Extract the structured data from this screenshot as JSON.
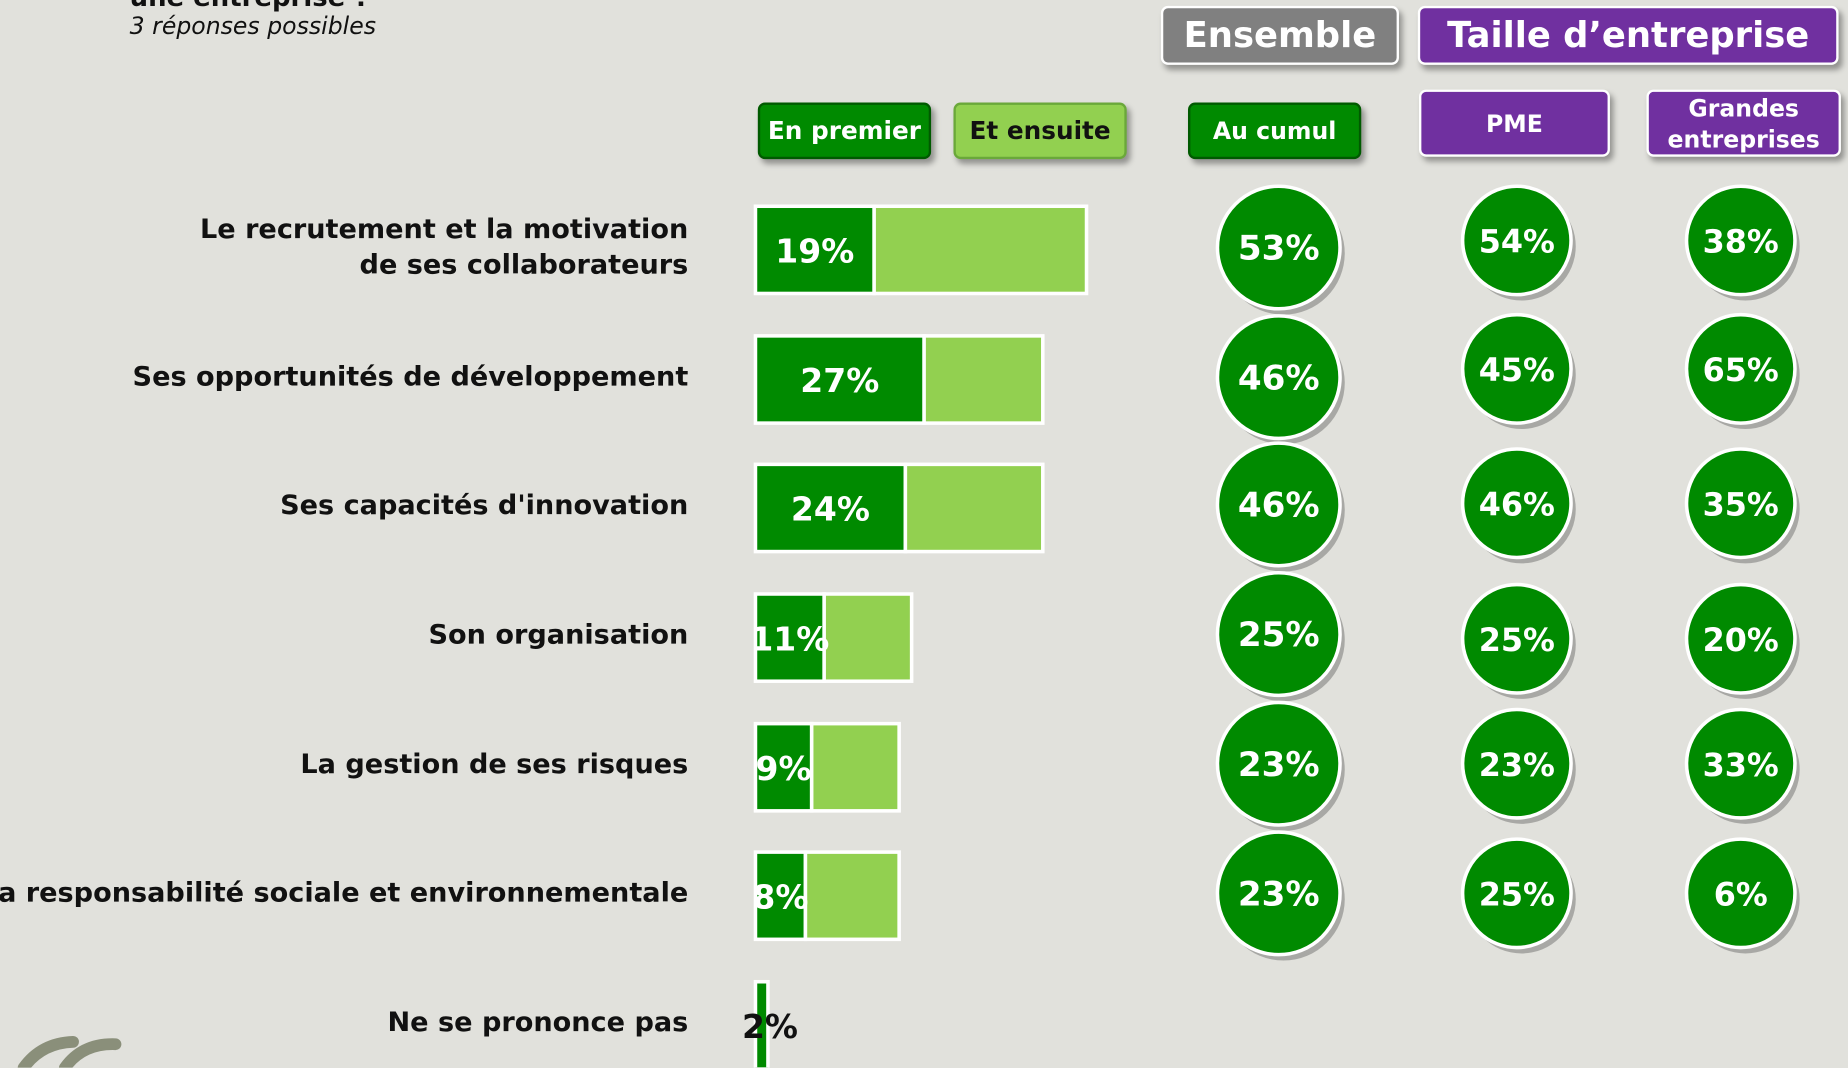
{
  "header": {
    "title": "une entreprise ?",
    "subtitle": "3 réponses possibles"
  },
  "chart_data": {
    "type": "bar",
    "orientation": "horizontal",
    "stacked": true,
    "categories": [
      "Le recrutement et la motivation de ses collaborateurs",
      "Ses opportunités de développement",
      "Ses capacités d'innovation",
      "Son organisation",
      "La gestion de ses risques",
      "Sa responsabilité sociale et environnementale",
      "Ne se prononce pas"
    ],
    "series": [
      {
        "name": "En premier",
        "color": "#008a00",
        "values": [
          19,
          27,
          24,
          11,
          9,
          8,
          2
        ],
        "value_labels": [
          "19%",
          "27%",
          "24%",
          "11%",
          "9%",
          "8%",
          "2%"
        ]
      },
      {
        "name": "Et ensuite",
        "color": "#92d050",
        "values": [
          34,
          19,
          22,
          14,
          14,
          15,
          null
        ]
      }
    ],
    "circle_color": "#008a00",
    "groups": [
      {
        "label": "Ensemble",
        "color": "#808080",
        "columns": [
          {
            "name": "Au cumul",
            "color": "#008a00",
            "values": [
              53,
              46,
              46,
              25,
              23,
              23
            ],
            "value_labels": [
              "53%",
              "46%",
              "46%",
              "25%",
              "23%",
              "23%"
            ]
          }
        ]
      },
      {
        "label": "Taille d’entreprise",
        "color": "#7030a0",
        "columns": [
          {
            "name": "PME",
            "color": "#7030a0",
            "values": [
              54,
              45,
              46,
              25,
              23,
              25
            ],
            "value_labels": [
              "54%",
              "45%",
              "46%",
              "25%",
              "23%",
              "25%"
            ]
          },
          {
            "name": "Grandes entreprises",
            "color": "#7030a0",
            "values": [
              38,
              65,
              35,
              20,
              33,
              6
            ],
            "value_labels": [
              "38%",
              "65%",
              "35%",
              "20%",
              "33%",
              "6%"
            ]
          }
        ]
      }
    ]
  }
}
